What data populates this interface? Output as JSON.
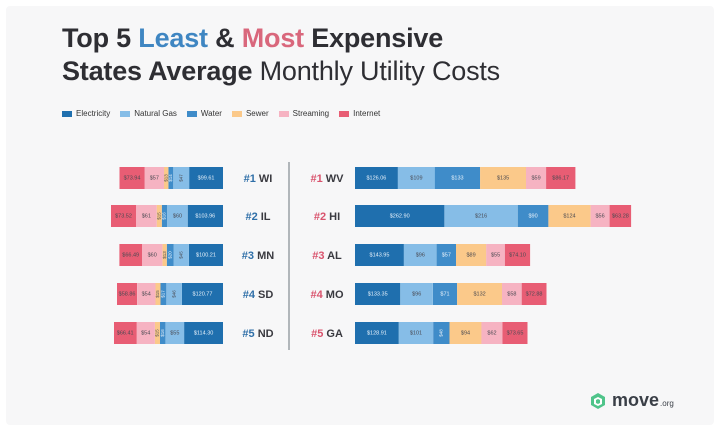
{
  "title": {
    "line1_parts": [
      "Top 5 ",
      "Least",
      " & ",
      "Most",
      " Expensive"
    ],
    "line2_bold": "States Average",
    "line2_light": " Monthly Utility Costs"
  },
  "colors": {
    "Electricity": "#1f6fae",
    "Natural Gas": "#86bde7",
    "Water": "#3f8cc9",
    "Sewer": "#fbc98a",
    "Streaming": "#f6b3c2",
    "Internet": "#e85d74",
    "rank_least": "#2f6fa8",
    "rank_most": "#d9536d"
  },
  "legend": [
    "Electricity",
    "Natural Gas",
    "Water",
    "Sewer",
    "Streaming",
    "Internet"
  ],
  "logo": {
    "text": "move",
    "suffix": ".org",
    "icon": "move-logo-icon"
  },
  "chart_data": [
    {
      "type": "bar",
      "title": "Least Expensive",
      "stacked": true,
      "direction": "right-to-left",
      "categories": [
        "#1 WI",
        "#2 IL",
        "#3 MN",
        "#4 SD",
        "#5 ND"
      ],
      "series": [
        {
          "name": "Electricity",
          "values": [
            99.61,
            103.96,
            100.21,
            120.77,
            114.3
          ],
          "labels": [
            "$99.61",
            "$103.96",
            "$100.21",
            "$120.77",
            "$114.30"
          ]
        },
        {
          "name": "Natural Gas",
          "values": [
            47,
            60,
            45,
            46,
            55
          ],
          "labels": [
            "$47",
            "$60",
            "$45",
            "$46",
            "$55"
          ]
        },
        {
          "name": "Water",
          "values": [
            14,
            16,
            20,
            17,
            16
          ],
          "labels": [
            "$14",
            "$16",
            "$20",
            "$17",
            "$16"
          ]
        },
        {
          "name": "Sewer",
          "values": [
            13,
            15,
            13,
            15,
            15
          ],
          "labels": [
            "$13",
            "$15",
            "$13",
            "$15",
            "$15"
          ]
        },
        {
          "name": "Streaming",
          "values": [
            57,
            61,
            60,
            54,
            54
          ],
          "labels": [
            "$57",
            "$61",
            "$60",
            "$54",
            "$54"
          ]
        },
        {
          "name": "Internet",
          "values": [
            73.94,
            73.52,
            66.49,
            58.86,
            66.41
          ],
          "labels": [
            "$73.94",
            "$73.52",
            "$66.49",
            "$58.86",
            "$66.41"
          ]
        }
      ]
    },
    {
      "type": "bar",
      "title": "Most Expensive",
      "stacked": true,
      "direction": "left-to-right",
      "categories": [
        "#1 WV",
        "#2 HI",
        "#3 AL",
        "#4 MO",
        "#5 GA"
      ],
      "series": [
        {
          "name": "Electricity",
          "values": [
            126.06,
            262.9,
            143.95,
            133.35,
            128.91
          ],
          "labels": [
            "$126.06",
            "$262.90",
            "$143.95",
            "$133.35",
            "$128.91"
          ]
        },
        {
          "name": "Natural Gas",
          "values": [
            109,
            216,
            96,
            96,
            101
          ],
          "labels": [
            "$109",
            "$216",
            "$96",
            "$96",
            "$101"
          ]
        },
        {
          "name": "Water",
          "values": [
            133,
            90,
            57,
            71,
            48
          ],
          "labels": [
            "$133",
            "$90",
            "$57",
            "$71",
            "$48"
          ]
        },
        {
          "name": "Sewer",
          "values": [
            135,
            124,
            89,
            132,
            94
          ],
          "labels": [
            "$135",
            "$124",
            "$89",
            "$132",
            "$94"
          ]
        },
        {
          "name": "Streaming",
          "values": [
            59,
            56,
            55,
            58,
            62
          ],
          "labels": [
            "$59",
            "$56",
            "$55",
            "$58",
            "$62"
          ]
        },
        {
          "name": "Internet",
          "values": [
            86.17,
            63.28,
            74.1,
            72.88,
            73.65
          ],
          "labels": [
            "$86.17",
            "$63.28",
            "$74.10",
            "$72.88",
            "$73.65"
          ]
        }
      ]
    }
  ]
}
